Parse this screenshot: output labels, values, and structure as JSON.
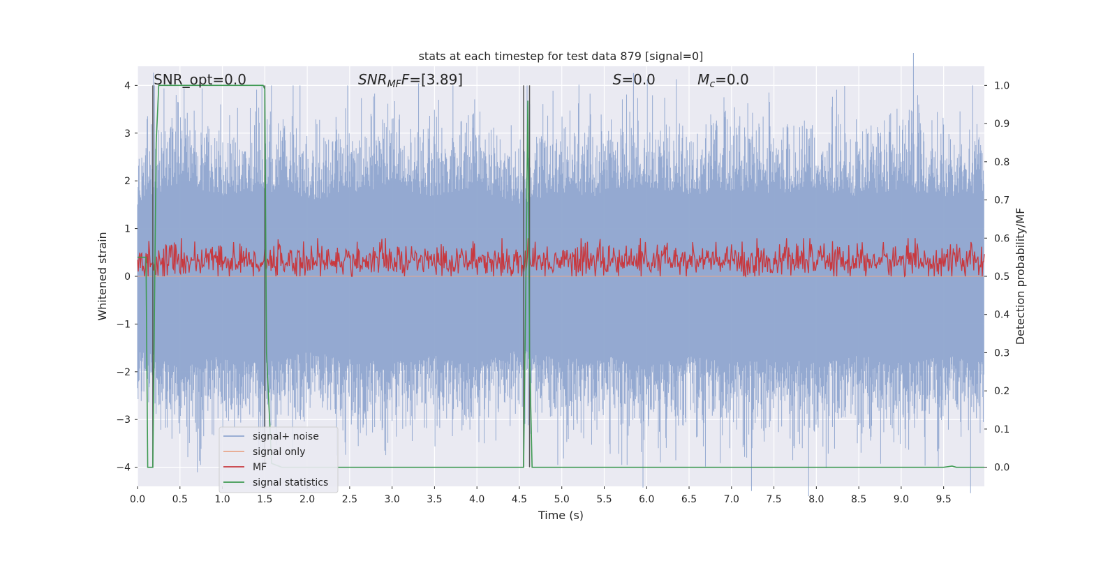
{
  "chart_data": {
    "type": "line",
    "title": "stats at each timestep for test data 879 [signal=0]",
    "xlabel": "Time (s)",
    "ylabel": "Whitened strain",
    "ylabel_right": "Detection probability/MF",
    "xlim": [
      0.0,
      9.98
    ],
    "ylim": [
      -4.4,
      4.4
    ],
    "ylim_right": [
      -0.05,
      1.05
    ],
    "x_ticks": [
      "0.0",
      "0.5",
      "1.0",
      "1.5",
      "2.0",
      "2.5",
      "3.0",
      "3.5",
      "4.0",
      "4.5",
      "5.0",
      "5.5",
      "6.0",
      "6.5",
      "7.0",
      "7.5",
      "8.0",
      "8.5",
      "9.0",
      "9.5"
    ],
    "x_tick_values": [
      0.0,
      0.5,
      1.0,
      1.5,
      2.0,
      2.5,
      3.0,
      3.5,
      4.0,
      4.5,
      5.0,
      5.5,
      6.0,
      6.5,
      7.0,
      7.5,
      8.0,
      8.5,
      9.0,
      9.5
    ],
    "y_ticks": [
      "−4",
      "−3",
      "−2",
      "−1",
      "0",
      "1",
      "2",
      "3",
      "4"
    ],
    "y_tick_values": [
      -4,
      -3,
      -2,
      -1,
      0,
      1,
      2,
      3,
      4
    ],
    "y_ticks_right": [
      "0.0",
      "0.1",
      "0.2",
      "0.3",
      "0.4",
      "0.5",
      "0.6",
      "0.7",
      "0.8",
      "0.9",
      "1.0"
    ],
    "y_tick_values_right": [
      0.0,
      0.1,
      0.2,
      0.3,
      0.4,
      0.5,
      0.6,
      0.7,
      0.8,
      0.9,
      1.0
    ],
    "grid": true,
    "legend_position": "lower-left",
    "annotations": {
      "snr_opt": "SNR_opt=0.0",
      "snr_mf_prefix": "SNR",
      "snr_mf_sub": "MF",
      "snr_mf_suffix": "=[3.89]",
      "s_prefix": "S",
      "s_suffix": "=0.0",
      "mc_prefix": "M",
      "mc_sub": "c",
      "mc_suffix": "=0.0"
    },
    "vertical_markers_x": [
      0.18,
      1.5,
      4.55,
      4.62
    ],
    "noise_envelope": {
      "x": [
        0.0,
        0.5,
        1.0,
        1.5,
        2.0,
        2.5,
        3.0,
        3.5,
        4.0,
        4.5,
        5.0,
        5.5,
        6.0,
        6.5,
        7.0,
        7.5,
        8.0,
        8.5,
        9.0,
        9.5,
        9.98
      ],
      "upper": [
        2.0,
        2.6,
        2.2,
        2.4,
        2.1,
        2.3,
        2.5,
        2.2,
        2.4,
        2.0,
        2.3,
        2.2,
        2.5,
        2.2,
        2.4,
        2.3,
        2.4,
        2.2,
        2.4,
        2.2,
        2.3
      ],
      "lower": [
        -2.0,
        -2.5,
        -2.2,
        -2.4,
        -2.1,
        -2.3,
        -2.4,
        -2.2,
        -2.4,
        -2.0,
        -2.3,
        -2.2,
        -2.5,
        -2.2,
        -2.4,
        -2.3,
        -2.4,
        -2.2,
        -2.4,
        -2.2,
        -2.3
      ]
    },
    "series": [
      {
        "name": "signal+ noise",
        "color": "#8fa5cf",
        "axis": "left",
        "style": "dense-noise",
        "amplitude_max": 4.0
      },
      {
        "name": "signal only",
        "color": "#e8a58a",
        "axis": "left",
        "values": "0 throughout"
      },
      {
        "name": "MF",
        "color": "#c8383e",
        "axis": "right",
        "mean": 0.54,
        "range": [
          0.5,
          0.6
        ]
      },
      {
        "name": "signal statistics",
        "color": "#3e9a52",
        "axis": "right",
        "x": [
          0.0,
          0.1,
          0.12,
          0.18,
          0.22,
          0.25,
          0.3,
          1.4,
          1.48,
          1.5,
          1.52,
          1.58,
          1.7,
          1.9,
          2.0,
          4.5,
          4.55,
          4.58,
          4.6,
          4.62,
          4.65,
          9.5,
          9.6,
          9.65,
          9.98
        ],
        "y": [
          0.55,
          0.55,
          0.0,
          0.0,
          0.85,
          1.0,
          1.0,
          1.0,
          1.0,
          0.99,
          0.3,
          0.01,
          0.0,
          0.0,
          0.0,
          0.0,
          0.0,
          0.55,
          0.96,
          0.3,
          0.0,
          0.0,
          0.003,
          0.0,
          0.0
        ]
      }
    ]
  }
}
